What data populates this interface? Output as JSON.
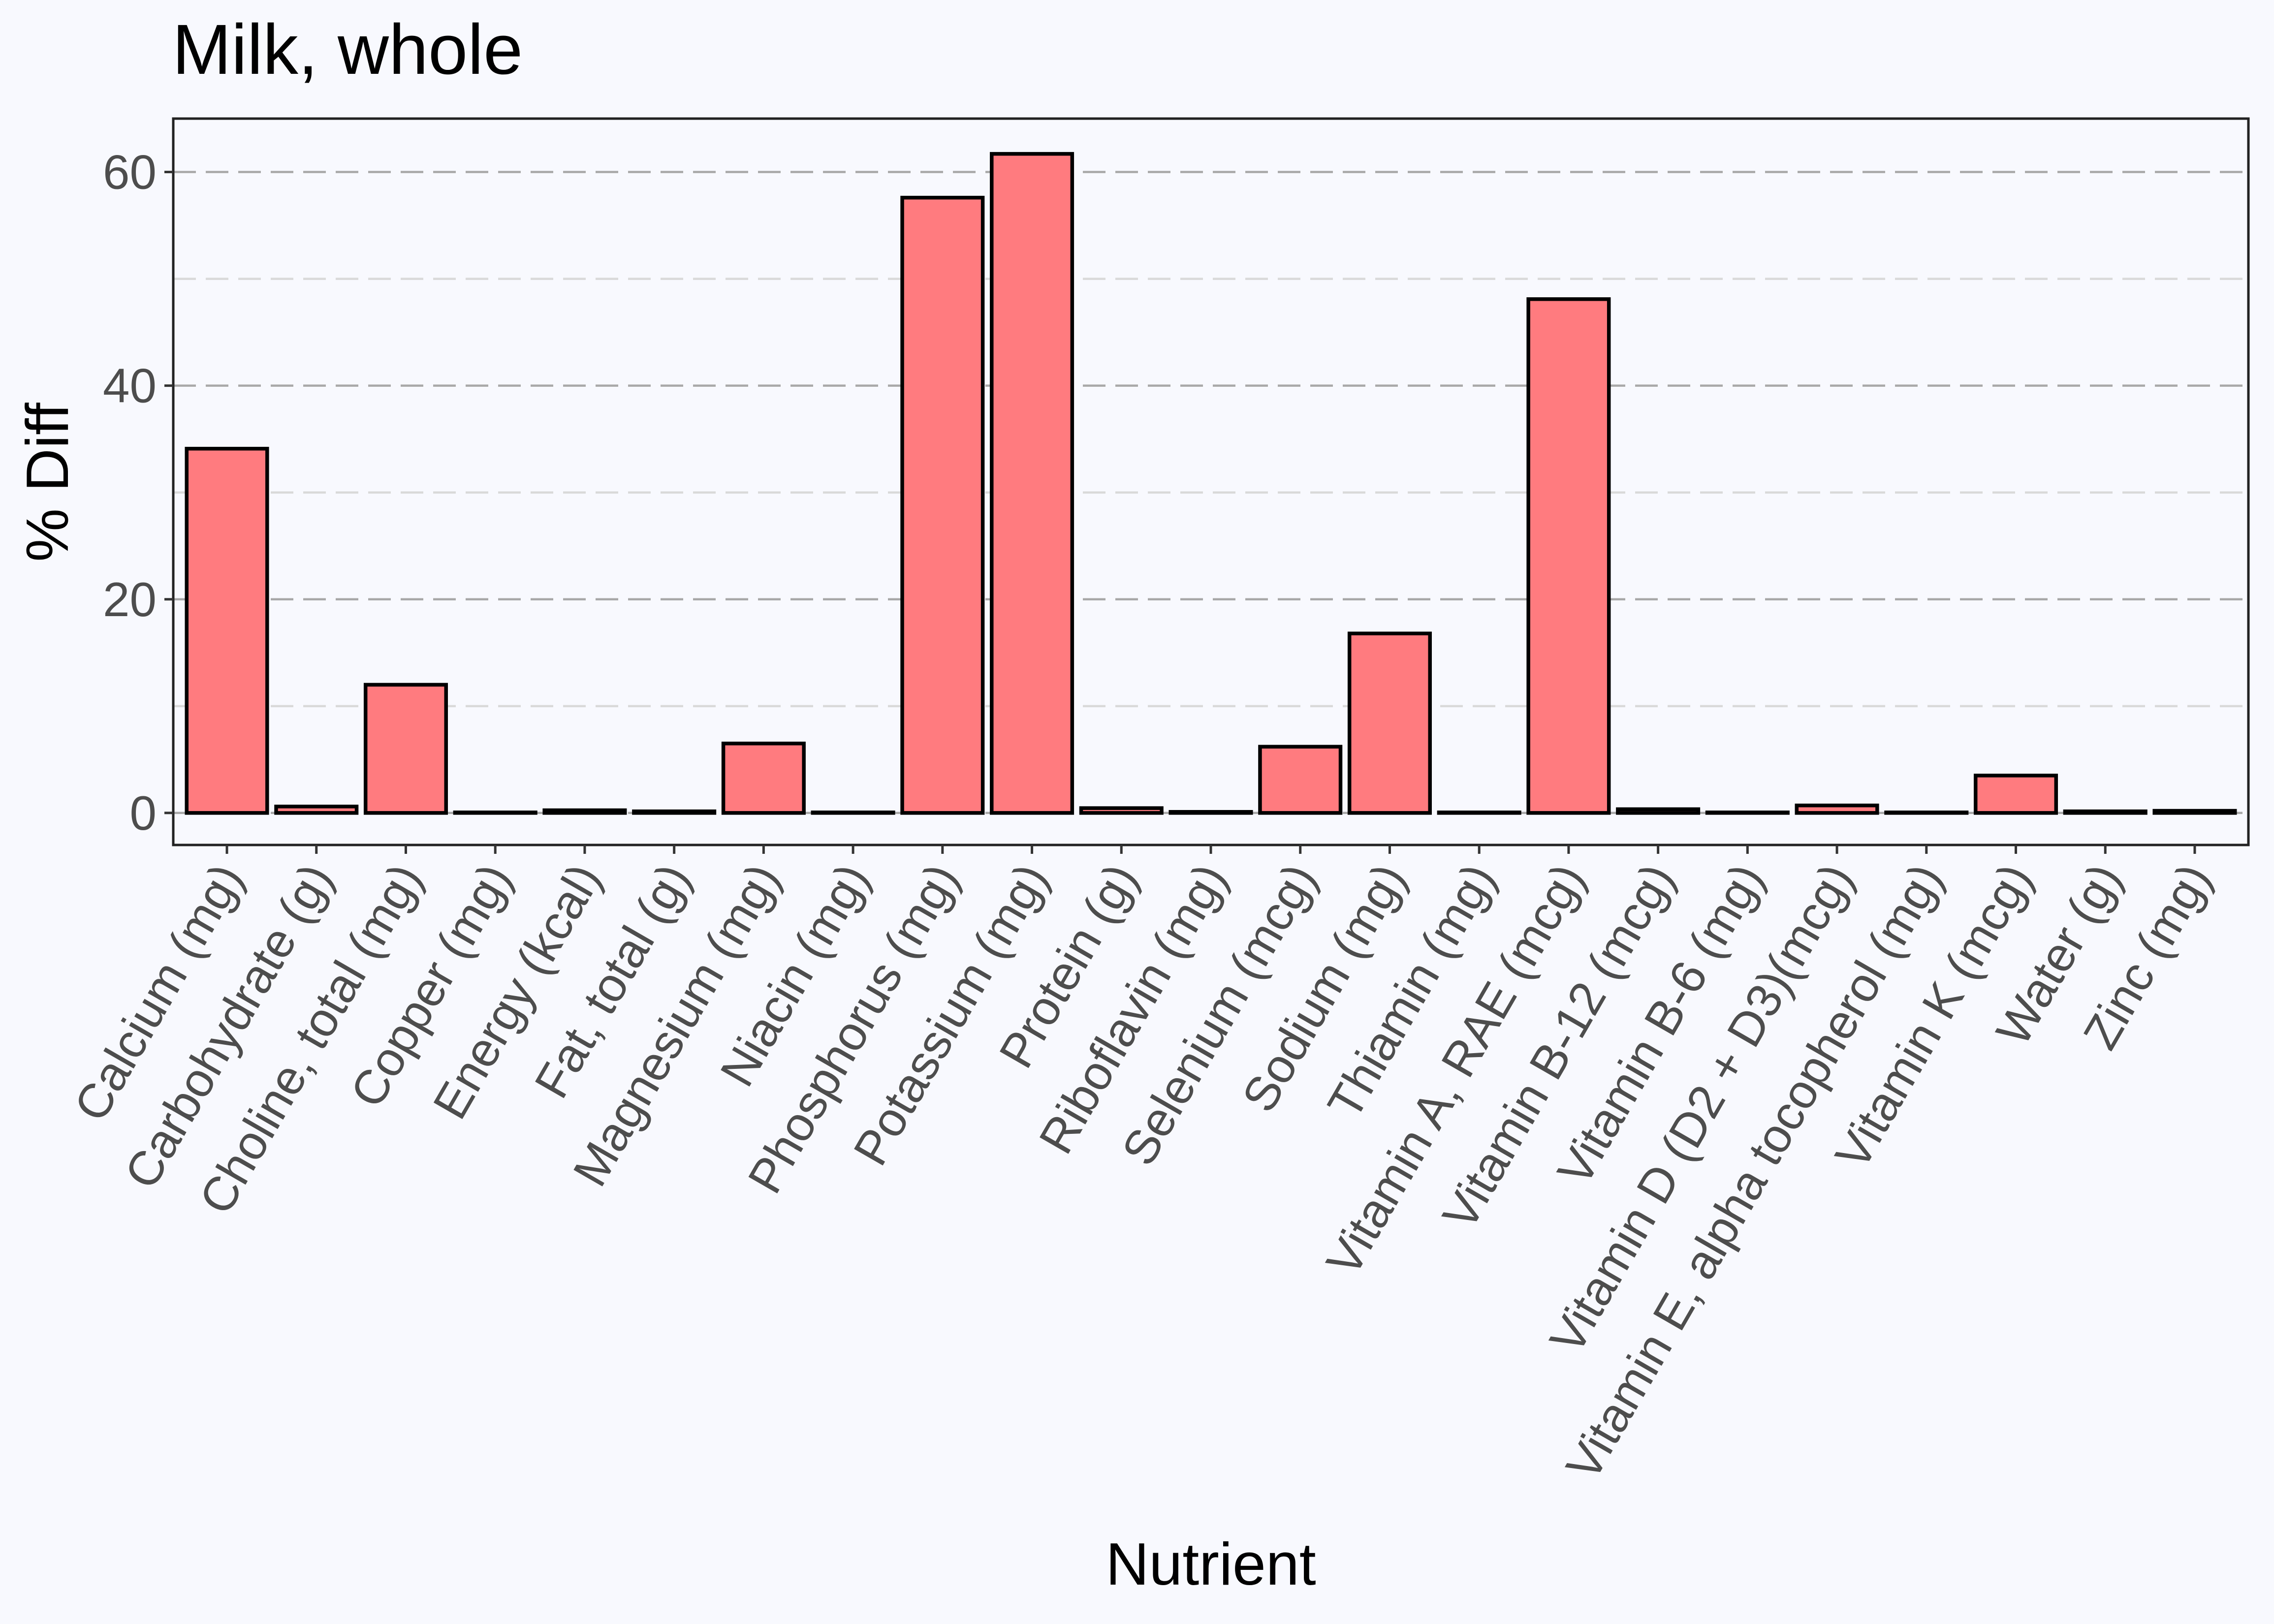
{
  "chart_data": {
    "type": "bar",
    "title": "Milk, whole",
    "xlabel": "Nutrient",
    "ylabel": "% Diff",
    "ylim": [
      -3,
      65
    ],
    "yticks": [
      0,
      20,
      40,
      60
    ],
    "grid": true,
    "legend": "none",
    "bar_color": "#ff7b7f",
    "bar_outline_color": "#000000",
    "background_color": "#f8f9fe",
    "categories": [
      "Calcium (mg)",
      "Carbohydrate (g)",
      "Choline, total (mg)",
      "Copper (mg)",
      "Energy (kcal)",
      "Fat, total (g)",
      "Magnesium (mg)",
      "Niacin (mg)",
      "Phosphorus (mg)",
      "Potassium (mg)",
      "Protein (g)",
      "Riboflavin (mg)",
      "Selenium (mcg)",
      "Sodium (mg)",
      "Thiamin (mg)",
      "Vitamin A, RAE (mcg)",
      "Vitamin B-12 (mcg)",
      "Vitamin B-6 (mg)",
      "Vitamin D (D2 + D3)(mcg)",
      "Vitamin E, alpha tocopherol (mg)",
      "Vitamin K (mcg)",
      "Water (g)",
      "Zinc (mg)"
    ],
    "values": [
      34.1,
      0.6,
      12.0,
      0.05,
      0.25,
      0.15,
      6.5,
      0.05,
      57.6,
      61.7,
      0.45,
      0.1,
      6.2,
      16.8,
      0.05,
      48.1,
      0.35,
      0.05,
      0.7,
      0.05,
      3.5,
      0.15,
      0.2
    ]
  }
}
